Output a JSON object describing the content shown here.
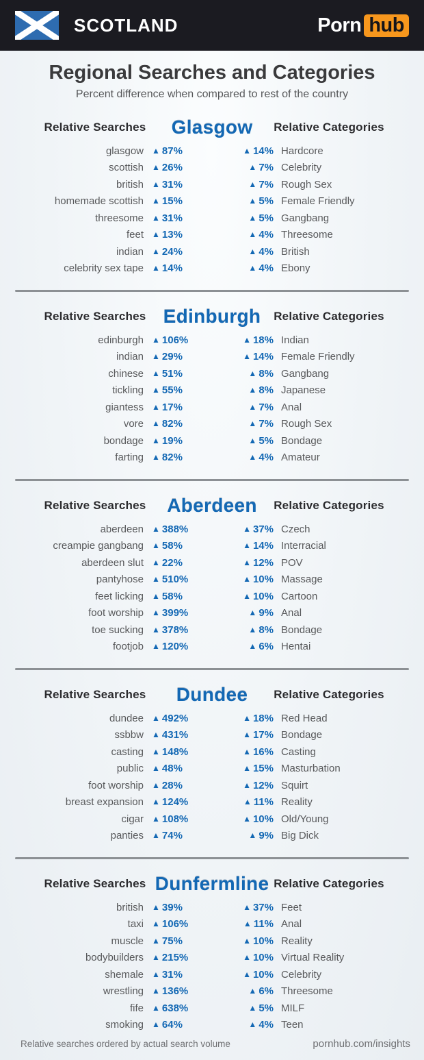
{
  "header": {
    "country_label": "SCOTLAND",
    "brand": {
      "porn": "Porn",
      "hub": "hub"
    }
  },
  "title": "Regional Searches and Categories",
  "subtitle": "Percent difference when compared to rest of the country",
  "column_headers": {
    "searches": "Relative Searches",
    "categories": "Relative Categories"
  },
  "icons": {
    "up_triangle": "▲",
    "flag": "scotland-saltire"
  },
  "colors": {
    "accent_blue": "#1368b4",
    "topbar_bg": "#1b1b21",
    "brand_orange": "#f7971d",
    "text_gray": "#58595b",
    "title_dark": "#3a3a3c",
    "divider_gray": "#8c9094"
  },
  "sections": [
    {
      "city": "Glasgow",
      "searches": [
        {
          "term": "glasgow",
          "value": "87%"
        },
        {
          "term": "scottish",
          "value": "26%"
        },
        {
          "term": "british",
          "value": "31%"
        },
        {
          "term": "homemade scottish",
          "value": "15%"
        },
        {
          "term": "threesome",
          "value": "31%"
        },
        {
          "term": "feet",
          "value": "13%"
        },
        {
          "term": "indian",
          "value": "24%"
        },
        {
          "term": "celebrity sex tape",
          "value": "14%"
        }
      ],
      "categories": [
        {
          "value": "14%",
          "label": "Hardcore"
        },
        {
          "value": "7%",
          "label": "Celebrity"
        },
        {
          "value": "7%",
          "label": "Rough Sex"
        },
        {
          "value": "5%",
          "label": "Female Friendly"
        },
        {
          "value": "5%",
          "label": "Gangbang"
        },
        {
          "value": "4%",
          "label": "Threesome"
        },
        {
          "value": "4%",
          "label": "British"
        },
        {
          "value": "4%",
          "label": "Ebony"
        }
      ]
    },
    {
      "city": "Edinburgh",
      "searches": [
        {
          "term": "edinburgh",
          "value": "106%"
        },
        {
          "term": "indian",
          "value": "29%"
        },
        {
          "term": "chinese",
          "value": "51%"
        },
        {
          "term": "tickling",
          "value": "55%"
        },
        {
          "term": "giantess",
          "value": "17%"
        },
        {
          "term": "vore",
          "value": "82%"
        },
        {
          "term": "bondage",
          "value": "19%"
        },
        {
          "term": "farting",
          "value": "82%"
        }
      ],
      "categories": [
        {
          "value": "18%",
          "label": "Indian"
        },
        {
          "value": "14%",
          "label": "Female Friendly"
        },
        {
          "value": "8%",
          "label": "Gangbang"
        },
        {
          "value": "8%",
          "label": "Japanese"
        },
        {
          "value": "7%",
          "label": "Anal"
        },
        {
          "value": "7%",
          "label": "Rough Sex"
        },
        {
          "value": "5%",
          "label": "Bondage"
        },
        {
          "value": "4%",
          "label": "Amateur"
        }
      ]
    },
    {
      "city": "Aberdeen",
      "searches": [
        {
          "term": "aberdeen",
          "value": "388%"
        },
        {
          "term": "creampie gangbang",
          "value": "58%"
        },
        {
          "term": "aberdeen slut",
          "value": "22%"
        },
        {
          "term": "pantyhose",
          "value": "510%"
        },
        {
          "term": "feet licking",
          "value": "58%"
        },
        {
          "term": "foot worship",
          "value": "399%"
        },
        {
          "term": "toe sucking",
          "value": "378%"
        },
        {
          "term": "footjob",
          "value": "120%"
        }
      ],
      "categories": [
        {
          "value": "37%",
          "label": "Czech"
        },
        {
          "value": "14%",
          "label": "Interracial"
        },
        {
          "value": "12%",
          "label": "POV"
        },
        {
          "value": "10%",
          "label": "Massage"
        },
        {
          "value": "10%",
          "label": "Cartoon"
        },
        {
          "value": "9%",
          "label": "Anal"
        },
        {
          "value": "8%",
          "label": "Bondage"
        },
        {
          "value": "6%",
          "label": "Hentai"
        }
      ]
    },
    {
      "city": "Dundee",
      "searches": [
        {
          "term": "dundee",
          "value": "492%"
        },
        {
          "term": "ssbbw",
          "value": "431%"
        },
        {
          "term": "casting",
          "value": "148%"
        },
        {
          "term": "public",
          "value": "48%"
        },
        {
          "term": "foot worship",
          "value": "28%"
        },
        {
          "term": "breast expansion",
          "value": "124%"
        },
        {
          "term": "cigar",
          "value": "108%"
        },
        {
          "term": "panties",
          "value": "74%"
        }
      ],
      "categories": [
        {
          "value": "18%",
          "label": "Red Head"
        },
        {
          "value": "17%",
          "label": "Bondage"
        },
        {
          "value": "16%",
          "label": "Casting"
        },
        {
          "value": "15%",
          "label": "Masturbation"
        },
        {
          "value": "12%",
          "label": "Squirt"
        },
        {
          "value": "11%",
          "label": "Reality"
        },
        {
          "value": "10%",
          "label": "Old/Young"
        },
        {
          "value": "9%",
          "label": "Big Dick"
        }
      ]
    },
    {
      "city": "Dunfermline",
      "searches": [
        {
          "term": "british",
          "value": "39%"
        },
        {
          "term": "taxi",
          "value": "106%"
        },
        {
          "term": "muscle",
          "value": "75%"
        },
        {
          "term": "bodybuilders",
          "value": "215%"
        },
        {
          "term": "shemale",
          "value": "31%"
        },
        {
          "term": "wrestling",
          "value": "136%"
        },
        {
          "term": "fife",
          "value": "638%"
        },
        {
          "term": "smoking",
          "value": "64%"
        }
      ],
      "categories": [
        {
          "value": "37%",
          "label": "Feet"
        },
        {
          "value": "11%",
          "label": "Anal"
        },
        {
          "value": "10%",
          "label": "Reality"
        },
        {
          "value": "10%",
          "label": "Virtual Reality"
        },
        {
          "value": "10%",
          "label": "Celebrity"
        },
        {
          "value": "6%",
          "label": "Threesome"
        },
        {
          "value": "5%",
          "label": "MILF"
        },
        {
          "value": "4%",
          "label": "Teen"
        }
      ]
    }
  ],
  "footer": {
    "note": "Relative searches ordered by actual search volume",
    "site": "pornhub.com/insights"
  },
  "chart_data": {
    "type": "table",
    "title": "Regional Searches and Categories",
    "subtitle": "Percent difference when compared to rest of the country",
    "unit": "percent_increase",
    "tables": [
      {
        "city": "Glasgow",
        "relative_searches": [
          [
            "glasgow",
            87
          ],
          [
            "scottish",
            26
          ],
          [
            "british",
            31
          ],
          [
            "homemade scottish",
            15
          ],
          [
            "threesome",
            31
          ],
          [
            "feet",
            13
          ],
          [
            "indian",
            24
          ],
          [
            "celebrity sex tape",
            14
          ]
        ],
        "relative_categories": [
          [
            "Hardcore",
            14
          ],
          [
            "Celebrity",
            7
          ],
          [
            "Rough Sex",
            7
          ],
          [
            "Female Friendly",
            5
          ],
          [
            "Gangbang",
            5
          ],
          [
            "Threesome",
            4
          ],
          [
            "British",
            4
          ],
          [
            "Ebony",
            4
          ]
        ]
      },
      {
        "city": "Edinburgh",
        "relative_searches": [
          [
            "edinburgh",
            106
          ],
          [
            "indian",
            29
          ],
          [
            "chinese",
            51
          ],
          [
            "tickling",
            55
          ],
          [
            "giantess",
            17
          ],
          [
            "vore",
            82
          ],
          [
            "bondage",
            19
          ],
          [
            "farting",
            82
          ]
        ],
        "relative_categories": [
          [
            "Indian",
            18
          ],
          [
            "Female Friendly",
            14
          ],
          [
            "Gangbang",
            8
          ],
          [
            "Japanese",
            8
          ],
          [
            "Anal",
            7
          ],
          [
            "Rough Sex",
            7
          ],
          [
            "Bondage",
            5
          ],
          [
            "Amateur",
            4
          ]
        ]
      },
      {
        "city": "Aberdeen",
        "relative_searches": [
          [
            "aberdeen",
            388
          ],
          [
            "creampie gangbang",
            58
          ],
          [
            "aberdeen slut",
            22
          ],
          [
            "pantyhose",
            510
          ],
          [
            "feet licking",
            58
          ],
          [
            "foot worship",
            399
          ],
          [
            "toe sucking",
            378
          ],
          [
            "footjob",
            120
          ]
        ],
        "relative_categories": [
          [
            "Czech",
            37
          ],
          [
            "Interracial",
            14
          ],
          [
            "POV",
            12
          ],
          [
            "Massage",
            10
          ],
          [
            "Cartoon",
            10
          ],
          [
            "Anal",
            9
          ],
          [
            "Bondage",
            8
          ],
          [
            "Hentai",
            6
          ]
        ]
      },
      {
        "city": "Dundee",
        "relative_searches": [
          [
            "dundee",
            492
          ],
          [
            "ssbbw",
            431
          ],
          [
            "casting",
            148
          ],
          [
            "public",
            48
          ],
          [
            "foot worship",
            28
          ],
          [
            "breast expansion",
            124
          ],
          [
            "cigar",
            108
          ],
          [
            "panties",
            74
          ]
        ],
        "relative_categories": [
          [
            "Red Head",
            18
          ],
          [
            "Bondage",
            17
          ],
          [
            "Casting",
            16
          ],
          [
            "Masturbation",
            15
          ],
          [
            "Squirt",
            12
          ],
          [
            "Reality",
            11
          ],
          [
            "Old/Young",
            10
          ],
          [
            "Big Dick",
            9
          ]
        ]
      },
      {
        "city": "Dunfermline",
        "relative_searches": [
          [
            "british",
            39
          ],
          [
            "taxi",
            106
          ],
          [
            "muscle",
            75
          ],
          [
            "bodybuilders",
            215
          ],
          [
            "shemale",
            31
          ],
          [
            "wrestling",
            136
          ],
          [
            "fife",
            638
          ],
          [
            "smoking",
            64
          ]
        ],
        "relative_categories": [
          [
            "Feet",
            37
          ],
          [
            "Anal",
            11
          ],
          [
            "Reality",
            10
          ],
          [
            "Virtual Reality",
            10
          ],
          [
            "Celebrity",
            10
          ],
          [
            "Threesome",
            6
          ],
          [
            "MILF",
            5
          ],
          [
            "Teen",
            4
          ]
        ]
      }
    ]
  }
}
